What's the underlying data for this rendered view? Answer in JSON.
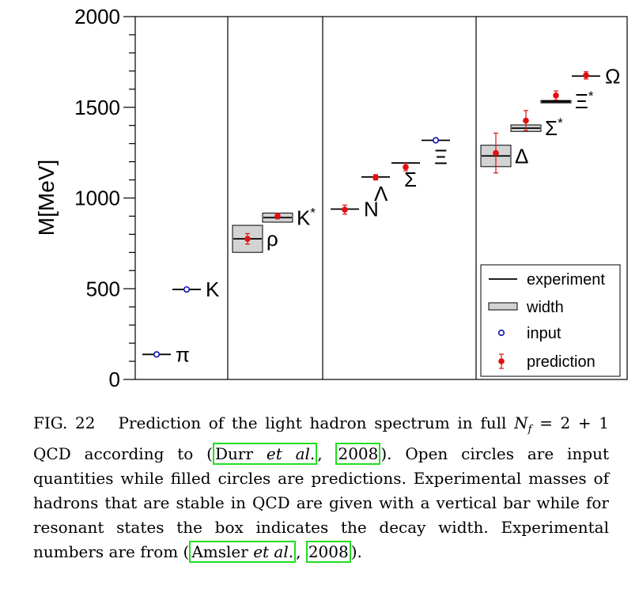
{
  "chart_data": {
    "type": "scatter",
    "ylabel": "M[MeV]",
    "ylim": [
      0,
      2000
    ],
    "yticks": [
      0,
      500,
      1000,
      1500,
      2000
    ],
    "grid": false,
    "legend_position": "bottom-right",
    "colors": {
      "experiment": "#000000",
      "width_fill": "#d3d3d3",
      "input": "#1010b0",
      "prediction": "#e01010"
    },
    "groups": [
      {
        "particles": [
          {
            "label": "π",
            "experiment": 138,
            "input": 138
          },
          {
            "label": "K",
            "experiment": 496,
            "input": 496
          }
        ]
      },
      {
        "particles": [
          {
            "label": "ρ",
            "experiment": 775,
            "width": 149,
            "prediction": 775,
            "error": 29
          },
          {
            "label": "K*",
            "experiment": 892,
            "width": 50,
            "prediction": 900,
            "error": 15
          }
        ]
      },
      {
        "particles": [
          {
            "label": "N",
            "experiment": 939,
            "prediction": 936,
            "error": 25
          },
          {
            "label": "Λ",
            "experiment": 1116,
            "prediction": 1114,
            "error": 15
          },
          {
            "label": "Σ",
            "experiment": 1193,
            "prediction": 1170,
            "error": 20
          },
          {
            "label": "Ξ",
            "experiment": 1318,
            "input": 1318
          }
        ]
      },
      {
        "particles": [
          {
            "label": "Δ",
            "experiment": 1232,
            "width": 118,
            "prediction": 1248,
            "error": 110
          },
          {
            "label": "Σ*",
            "experiment": 1385,
            "width": 36,
            "prediction": 1427,
            "error": 55
          },
          {
            "label": "Ξ*",
            "experiment": 1533,
            "width": 9,
            "prediction": 1565,
            "error": 25
          },
          {
            "label": "Ω",
            "experiment": 1672,
            "prediction": 1676,
            "error": 20
          }
        ]
      }
    ],
    "legend": [
      "experiment",
      "width",
      "input",
      "prediction"
    ]
  },
  "caption": {
    "fig_label": "FIG. 22",
    "text1": "Prediction of the light hadron spectrum in full",
    "nf": "N",
    "nf_sub": "f",
    "eq": " = 2 + 1 QCD according to (",
    "cite1_author": "Durr ",
    "cite1_etal": "et al.",
    "cite1_sep": ", ",
    "cite1_year": "2008",
    "text2": "). Open circles are input quantities while filled circles are predictions. Experimental masses of hadrons that are stable in QCD are given with a vertical bar while for resonant states the box indicates the decay width. Experimental numbers are from (",
    "cite2_author": "Amsler ",
    "cite2_etal": "et al.",
    "cite2_sep": ", ",
    "cite2_year": "2008",
    "text3": ")."
  }
}
